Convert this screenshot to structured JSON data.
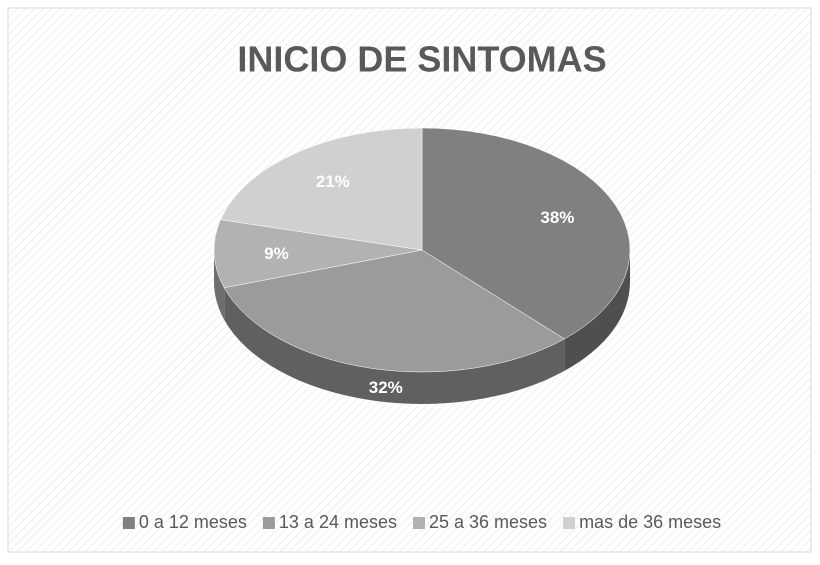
{
  "chart_data": {
    "type": "pie",
    "title": "INICIO DE SINTOMAS",
    "categories": [
      "0 a 12 meses",
      "13 a 24 meses",
      "25 a 36 meses",
      "mas de 36 meses"
    ],
    "values": [
      38,
      32,
      9,
      21
    ],
    "value_labels": [
      "38%",
      "32%",
      "9%",
      "21%"
    ],
    "colors": [
      "#808080",
      "#9b9b9b",
      "#b2b2b2",
      "#d0d0d0"
    ],
    "legend": "bottom"
  }
}
